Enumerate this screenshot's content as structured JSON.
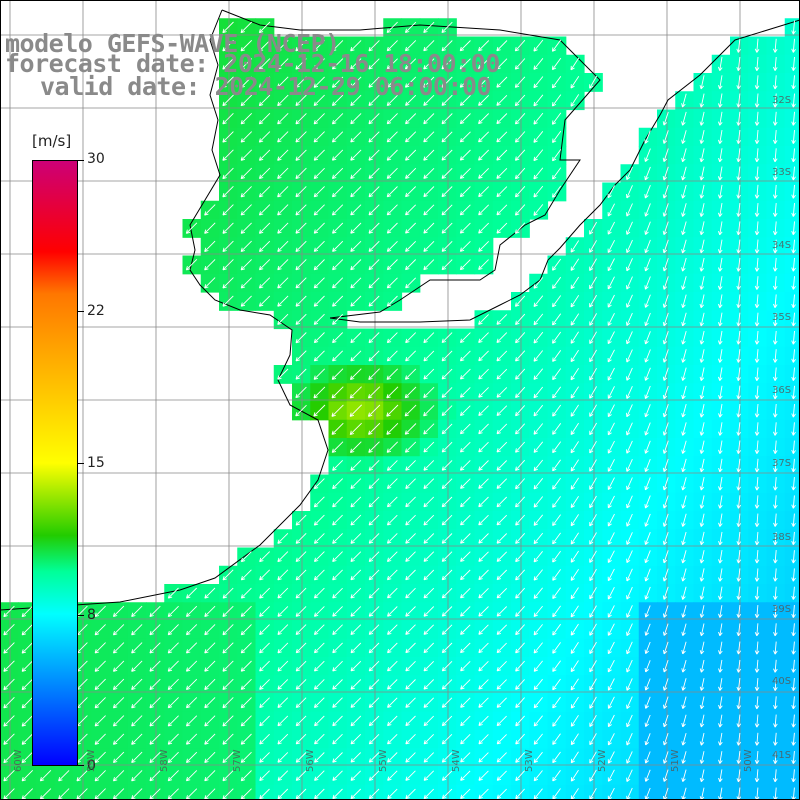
{
  "titles": {
    "model": "modelo GEFS-WAVE (NCEP)",
    "forecast": "forecast date: 2024-12-16 18:00:00",
    "valid": "valid date: 2024-12-29 06:00:00"
  },
  "colorbar": {
    "unit": "[m/s]",
    "ticks": [
      "30",
      "22",
      "15",
      "8",
      "0"
    ],
    "range": [
      0,
      30
    ],
    "colors": [
      "#0000ff",
      "#0099ff",
      "#00ffff",
      "#00ff99",
      "#22cc00",
      "#ffff00",
      "#ff7700",
      "#ff0000",
      "#cc0077"
    ]
  },
  "axes": {
    "lat_labels": [
      "32S",
      "33S",
      "34S",
      "35S",
      "36S",
      "37S",
      "38S",
      "39S",
      "40S",
      "41S"
    ],
    "lon_labels": [
      "60W",
      "59W",
      "58W",
      "57W",
      "56W",
      "55W",
      "54W",
      "53W",
      "52W",
      "51W",
      "50W"
    ]
  },
  "map": {
    "land_color": "#ffffff",
    "grid_color": "#888888",
    "coast_color": "#000000",
    "arrow_color": "#ffffff"
  }
}
